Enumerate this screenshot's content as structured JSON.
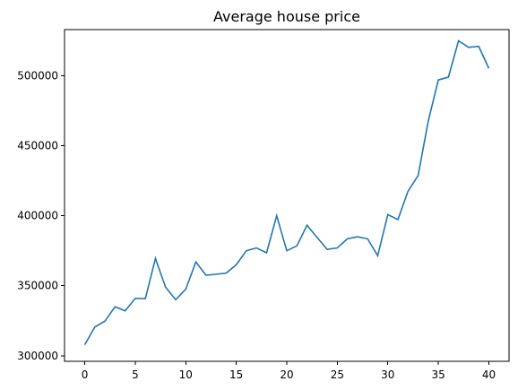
{
  "chart_data": {
    "type": "line",
    "title": "Average house price",
    "xlabel": "",
    "ylabel": "",
    "xlim": [
      -2,
      42
    ],
    "ylim": [
      296000,
      533000
    ],
    "xticks": [
      0,
      5,
      10,
      15,
      20,
      25,
      30,
      35,
      40
    ],
    "yticks": [
      300000,
      350000,
      400000,
      450000,
      500000
    ],
    "grid": false,
    "series": [
      {
        "color": "#1f77b4",
        "x": [
          0,
          1,
          2,
          3,
          4,
          5,
          6,
          7,
          8,
          9,
          10,
          11,
          12,
          13,
          14,
          15,
          16,
          17,
          18,
          19,
          20,
          21,
          22,
          23,
          24,
          25,
          26,
          27,
          28,
          29,
          30,
          31,
          32,
          33,
          34,
          35,
          36,
          37,
          38,
          39,
          40
        ],
        "values": [
          307800,
          320500,
          324700,
          335000,
          332000,
          341000,
          340800,
          369500,
          349000,
          340000,
          347500,
          367000,
          357500,
          358200,
          359000,
          365000,
          375000,
          377000,
          373500,
          400000,
          375000,
          378500,
          393200,
          384500,
          376000,
          377000,
          383500,
          385000,
          383500,
          371500,
          400800,
          397300,
          417500,
          428700,
          467500,
          497000,
          499000,
          525000,
          520300,
          521000,
          505300
        ]
      }
    ]
  }
}
